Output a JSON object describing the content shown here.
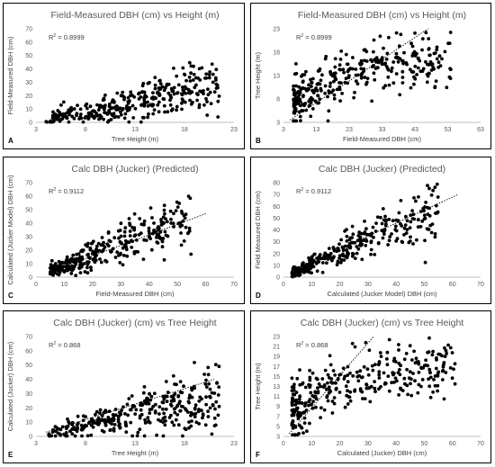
{
  "chart_data": [
    {
      "panel_label": "A",
      "type": "scatter",
      "title": "Field-Measured DBH (cm) vs Height (m)",
      "xlabel": "Tree Height (m)",
      "ylabel": "Field-Measured DBH (cm)",
      "xlim": [
        3,
        23
      ],
      "ylim": [
        0,
        70
      ],
      "xticks": [
        3,
        8,
        13,
        18,
        23
      ],
      "yticks": [
        0,
        10,
        20,
        30,
        40,
        50,
        60,
        70
      ],
      "annotation_prefix": "R",
      "annotation_sup": "2",
      "annotation_value": " = 0.8999",
      "trendline": false,
      "grid": false,
      "points": {
        "mode": "dbh_vs_height",
        "seed": 11
      }
    },
    {
      "panel_label": "B",
      "type": "scatter",
      "title": "Field-Measured DBH (cm) vs Height (m)",
      "xlabel": "Field-Measured DBH (cm)",
      "ylabel": "Tree Height (m)",
      "xlim": [
        3,
        63
      ],
      "ylim": [
        3,
        23
      ],
      "xticks": [
        3,
        13,
        23,
        33,
        43,
        53,
        63
      ],
      "yticks": [
        3,
        8,
        13,
        18,
        23
      ],
      "annotation_prefix": "R",
      "annotation_sup": "2",
      "annotation_value": " = 0.8999",
      "trendline": true,
      "trend": [
        [
          5,
          3.5
        ],
        [
          47,
          23
        ]
      ],
      "grid": false,
      "points": {
        "mode": "height_vs_dbh",
        "seed": 23
      }
    },
    {
      "panel_label": "C",
      "type": "scatter",
      "title": "Calc DBH (Jucker) (Predicted)",
      "xlabel": "Field-Measured DBH (cm)",
      "ylabel": "Calculated (Jucker Model) DBH (cm)",
      "xlim": [
        0,
        70
      ],
      "ylim": [
        0,
        70
      ],
      "xticks": [
        0,
        10,
        20,
        30,
        40,
        50,
        60,
        70
      ],
      "yticks": [
        0,
        10,
        20,
        30,
        40,
        50,
        60,
        70
      ],
      "annotation_prefix": "R",
      "annotation_sup": "2",
      "annotation_value": " = 0.9112",
      "trendline": true,
      "trend": [
        [
          5,
          4
        ],
        [
          60,
          47
        ]
      ],
      "grid": false,
      "points": {
        "mode": "calc_vs_field",
        "seed": 37
      }
    },
    {
      "panel_label": "D",
      "type": "scatter",
      "title": "Calc DBH (Jucker) (Predicted)",
      "xlabel": "Calculated (Jucker Model) DBH (cm)",
      "ylabel": "Field Measured DBH (cm)",
      "xlim": [
        0,
        70
      ],
      "ylim": [
        0,
        80
      ],
      "xticks": [
        0,
        10,
        20,
        30,
        40,
        50,
        60,
        70
      ],
      "yticks": [
        0,
        10,
        20,
        30,
        40,
        50,
        60,
        70,
        80
      ],
      "annotation_prefix": "R",
      "annotation_sup": "2",
      "annotation_value": " = 0.9112",
      "trendline": true,
      "trend": [
        [
          3,
          5
        ],
        [
          62,
          70
        ]
      ],
      "grid": false,
      "points": {
        "mode": "field_vs_calc",
        "seed": 41
      }
    },
    {
      "panel_label": "E",
      "type": "scatter",
      "title": "Calc DBH (Jucker) (cm) vs Tree Height",
      "xlabel": "Tree Height (m)",
      "ylabel": "Calculated (Jucker) DBH (cm)",
      "xlim": [
        3,
        23
      ],
      "ylim": [
        0,
        70
      ],
      "xticks": [
        3,
        8,
        13,
        18,
        23
      ],
      "yticks": [
        0,
        10,
        20,
        30,
        40,
        50,
        60,
        70
      ],
      "annotation_prefix": "R",
      "annotation_sup": "2",
      "annotation_value": " = 0.868",
      "trendline": true,
      "trend": [
        [
          4,
          3
        ],
        [
          21,
          40
        ]
      ],
      "grid": false,
      "points": {
        "mode": "dbh_vs_height",
        "seed": 53
      }
    },
    {
      "panel_label": "F",
      "type": "scatter",
      "title": "Calc DBH (Jucker) (cm) vs Tree Height",
      "xlabel": "Calculated (Jucker) DBH (cm)",
      "ylabel": "Tree Height (m)",
      "xlim": [
        0,
        70
      ],
      "ylim": [
        3,
        23
      ],
      "xticks": [
        0,
        10,
        20,
        30,
        40,
        50,
        60,
        70
      ],
      "yticks": [
        3,
        5,
        7,
        9,
        11,
        13,
        15,
        17,
        19,
        21,
        23
      ],
      "annotation_prefix": "R",
      "annotation_sup": "2",
      "annotation_value": " = 0.868",
      "trendline": true,
      "trend": [
        [
          2,
          3.5
        ],
        [
          32,
          23
        ]
      ],
      "grid": false,
      "points": {
        "mode": "height_vs_dbh",
        "seed": 67
      }
    }
  ]
}
